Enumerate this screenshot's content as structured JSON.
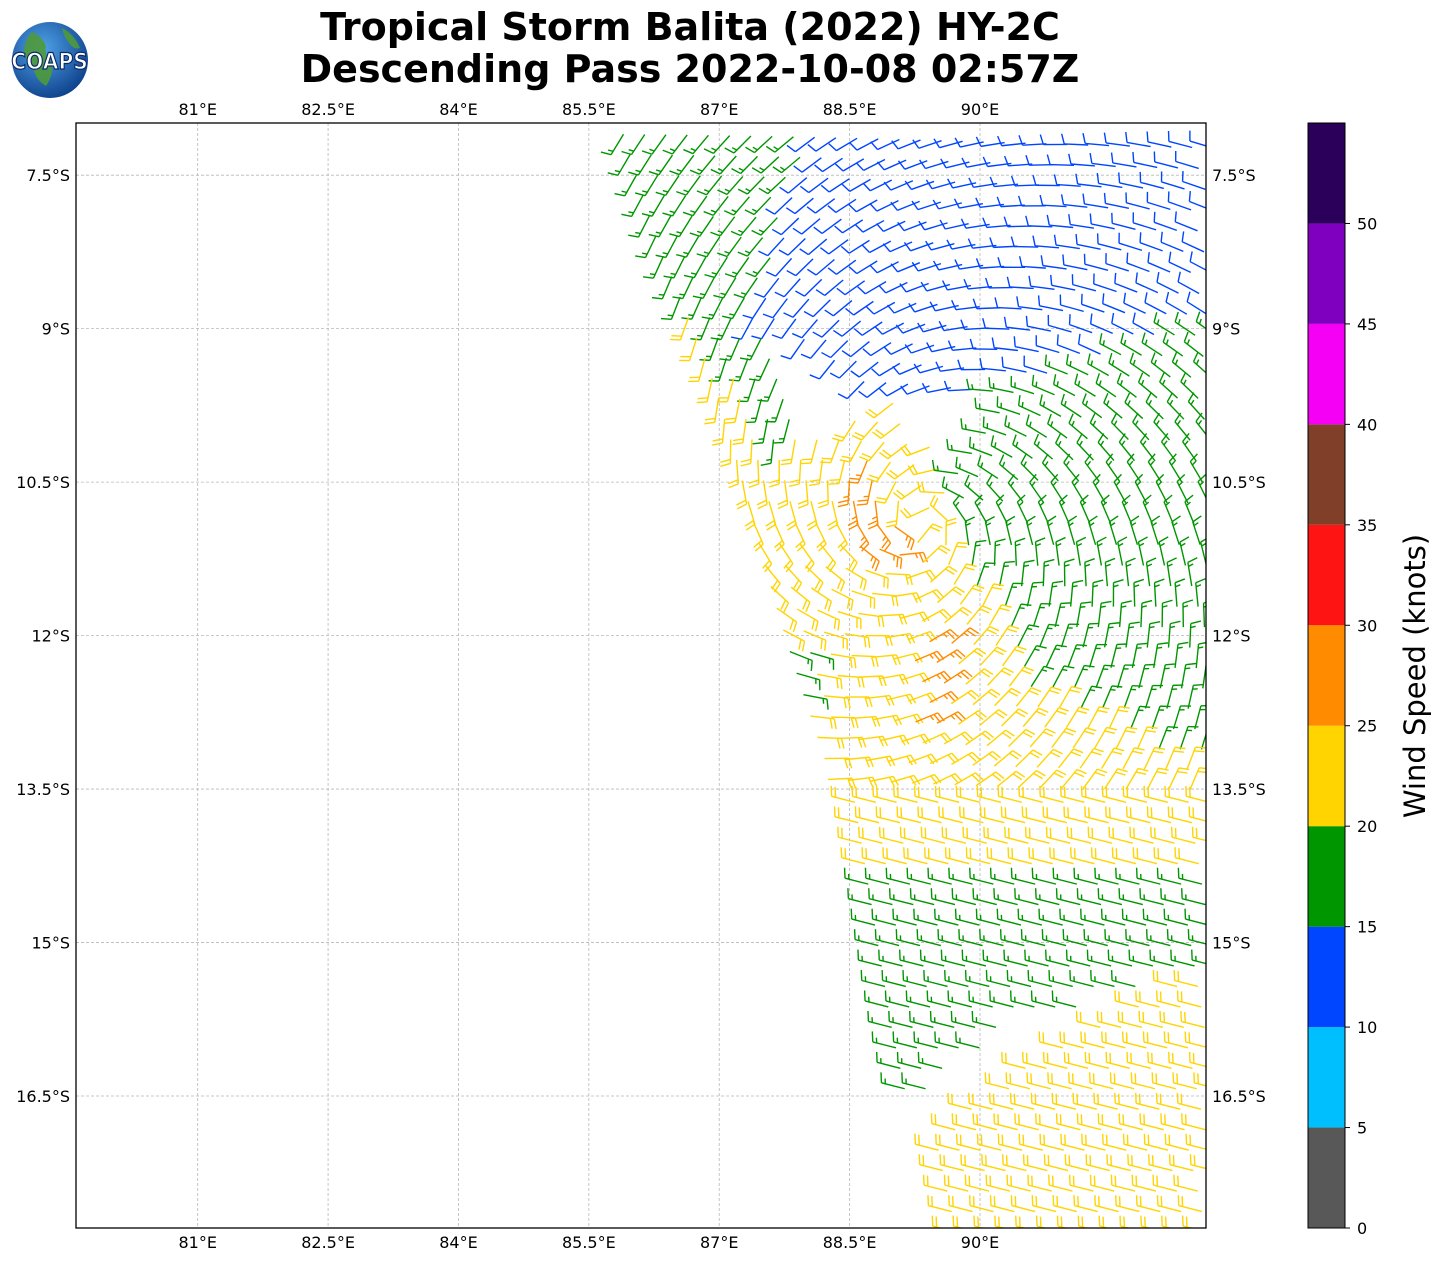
{
  "title": {
    "line1": "Tropical Storm Balita (2022) HY-2C",
    "line2": "Descending Pass 2022-10-08 02:57Z"
  },
  "logo": {
    "text": "COAPS",
    "icon": "globe-icon"
  },
  "map": {
    "lon_range": [
      79.6,
      92.6
    ],
    "lat_range": [
      -17.79,
      -6.99
    ],
    "lon_ticks": [
      "81°E",
      "82.5°E",
      "84°E",
      "85.5°E",
      "87°E",
      "88.5°E",
      "90°E"
    ],
    "lat_ticks": [
      "7.5°S",
      "9°S",
      "10.5°S",
      "12°S",
      "13.5°S",
      "15°S",
      "16.5°S"
    ],
    "grid": true,
    "swath_west_edge": [
      [
        85.7,
        -7.0
      ],
      [
        86.2,
        -8.3
      ],
      [
        86.8,
        -9.5
      ],
      [
        87.4,
        -11.0
      ],
      [
        88.3,
        -13.2
      ],
      [
        88.8,
        -15.8
      ],
      [
        89.3,
        -17.8
      ]
    ]
  },
  "wind_regions": [
    {
      "color": "#0045ff",
      "speed_knots": 12,
      "polygon": [
        [
          88.0,
          -7.0
        ],
        [
          92.6,
          -7.0
        ],
        [
          92.6,
          -8.8
        ],
        [
          90.0,
          -9.6
        ],
        [
          88.4,
          -9.6
        ],
        [
          87.3,
          -9.0
        ]
      ]
    },
    {
      "color": "#009600",
      "speed_knots": 17,
      "polygon": [
        [
          85.7,
          -7.0
        ],
        [
          88.0,
          -7.0
        ],
        [
          87.3,
          -9.0
        ],
        [
          88.2,
          -10.3
        ],
        [
          86.9,
          -10.2
        ],
        [
          86.5,
          -9.2
        ]
      ]
    },
    {
      "color": "#009600",
      "speed_knots": 17,
      "polygon": [
        [
          92.6,
          -8.8
        ],
        [
          92.6,
          -13.2
        ],
        [
          90.5,
          -12.5
        ],
        [
          89.5,
          -10.3
        ],
        [
          90.0,
          -9.6
        ]
      ]
    },
    {
      "color": "#ffd400",
      "speed_knots": 22,
      "polygon": [
        [
          86.1,
          -8.8
        ],
        [
          86.7,
          -8.9
        ],
        [
          87.6,
          -10.3
        ],
        [
          89.0,
          -9.7
        ],
        [
          90.6,
          -12.4
        ],
        [
          92.6,
          -13.2
        ],
        [
          92.6,
          -13.8
        ],
        [
          90.0,
          -13.9
        ],
        [
          88.4,
          -13.6
        ],
        [
          87.6,
          -12.5
        ],
        [
          87.3,
          -11.0
        ],
        [
          86.6,
          -9.6
        ]
      ]
    },
    {
      "color": "#009600",
      "speed_knots": 18,
      "polygon": [
        [
          87.7,
          -12.2
        ],
        [
          88.3,
          -12.1
        ],
        [
          88.0,
          -13.4
        ]
      ]
    },
    {
      "color": "#ffd400",
      "speed_knots": 21,
      "polygon": [
        [
          88.4,
          -13.3
        ],
        [
          92.6,
          -13.8
        ],
        [
          92.6,
          -14.4
        ],
        [
          88.4,
          -14.6
        ]
      ]
    },
    {
      "color": "#009600",
      "speed_knots": 17,
      "polygon": [
        [
          88.3,
          -14.4
        ],
        [
          92.6,
          -14.2
        ],
        [
          92.6,
          -15.2
        ],
        [
          90.2,
          -15.8
        ],
        [
          89.2,
          -16.5
        ],
        [
          89.3,
          -17.0
        ],
        [
          88.8,
          -16.0
        ]
      ]
    },
    {
      "color": "#ffd400",
      "speed_knots": 22,
      "polygon": [
        [
          92.6,
          -15.2
        ],
        [
          92.6,
          -17.8
        ],
        [
          89.5,
          -17.8
        ],
        [
          89.3,
          -17.0
        ],
        [
          90.2,
          -16.2
        ]
      ]
    },
    {
      "color": "#ff8c00",
      "speed_knots": 26,
      "polygon": [
        [
          88.4,
          -10.3
        ],
        [
          88.7,
          -10.3
        ],
        [
          89.3,
          -11.2
        ],
        [
          88.8,
          -11.4
        ],
        [
          88.5,
          -10.8
        ]
      ]
    },
    {
      "color": "#ff8c00",
      "speed_knots": 27,
      "polygon": [
        [
          89.4,
          -12.0
        ],
        [
          89.9,
          -11.9
        ],
        [
          89.6,
          -12.9
        ],
        [
          89.3,
          -12.8
        ]
      ]
    }
  ],
  "colorbar": {
    "label": "Wind Speed (knots)",
    "colors": [
      "#585858",
      "#00bfff",
      "#0045ff",
      "#009600",
      "#ffd400",
      "#ff8c00",
      "#ff1414",
      "#7f3f28",
      "#f500f5",
      "#8000bf",
      "#2a005a"
    ],
    "tick_labels": [
      "0",
      "5",
      "10",
      "15",
      "20",
      "25",
      "30",
      "35",
      "40",
      "45",
      "50"
    ]
  }
}
